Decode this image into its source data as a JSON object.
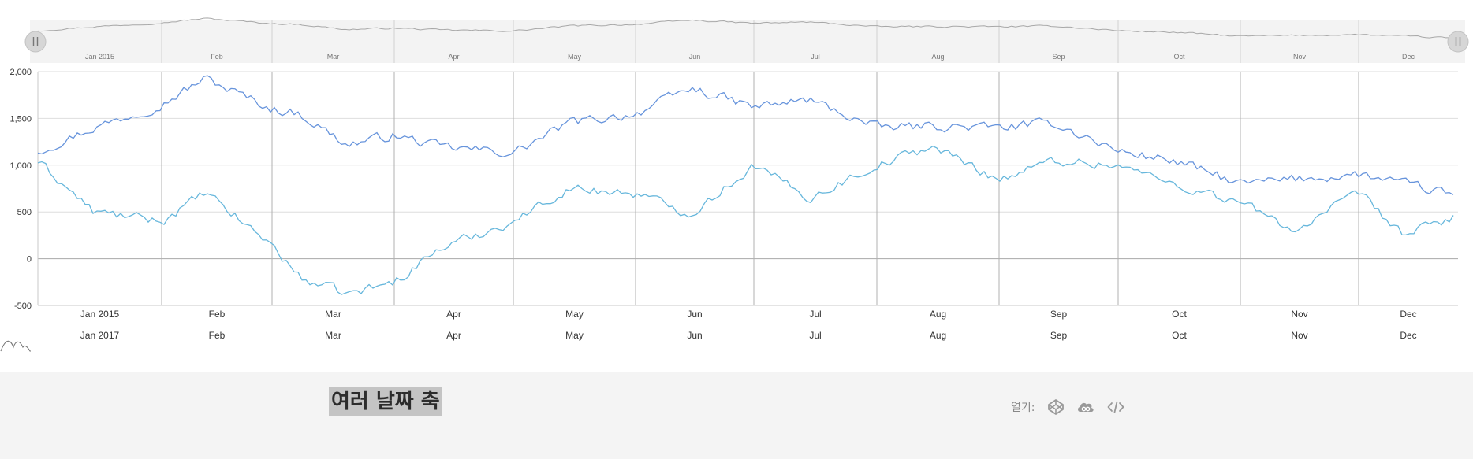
{
  "chart_data": {
    "type": "line",
    "ylim": [
      -500,
      2000
    ],
    "yticks": [
      "2,000",
      "1,500",
      "1,000",
      "500",
      "0",
      "-500"
    ],
    "ytick_values": [
      2000,
      1500,
      1000,
      500,
      0,
      -500
    ],
    "grid": true,
    "axis_top_labels": [
      "Jan 2015",
      "Feb",
      "Mar",
      "Apr",
      "May",
      "Jun",
      "Jul",
      "Aug",
      "Sep",
      "Oct",
      "Nov",
      "Dec"
    ],
    "axis_bottom_labels": [
      "Jan 2017",
      "Feb",
      "Mar",
      "Apr",
      "May",
      "Jun",
      "Jul",
      "Aug",
      "Sep",
      "Oct",
      "Nov",
      "Dec"
    ],
    "scrollbar_labels": [
      "Jan 2015",
      "Feb",
      "Mar",
      "Apr",
      "May",
      "Jun",
      "Jul",
      "Aug",
      "Sep",
      "Oct",
      "Nov",
      "Dec"
    ],
    "series": [
      {
        "color": "#6794dc",
        "x": [
          "2015-01-01",
          "2015-01-15",
          "2015-02-01",
          "2015-02-12",
          "2015-03-01",
          "2015-03-08",
          "2015-03-20",
          "2015-04-01",
          "2015-04-12",
          "2015-05-01",
          "2015-05-15",
          "2015-06-01",
          "2015-06-15",
          "2015-07-01",
          "2015-07-15",
          "2015-08-01",
          "2015-08-15",
          "2015-09-01",
          "2015-09-15",
          "2015-10-01",
          "2015-10-15",
          "2015-11-01",
          "2015-11-15",
          "2015-12-01",
          "2015-12-15",
          "2015-12-31"
        ],
        "values": [
          1150,
          1400,
          1650,
          1930,
          1600,
          1550,
          1220,
          1320,
          1200,
          1130,
          1450,
          1550,
          1820,
          1620,
          1700,
          1400,
          1420,
          1400,
          1450,
          1150,
          1050,
          800,
          850,
          900,
          800,
          680
        ]
      },
      {
        "color": "#67b7dc",
        "x": [
          "2015-01-01",
          "2015-01-15",
          "2015-02-01",
          "2015-02-12",
          "2015-03-01",
          "2015-03-08",
          "2015-03-20",
          "2015-04-01",
          "2015-04-12",
          "2015-05-01",
          "2015-05-15",
          "2015-06-01",
          "2015-06-15",
          "2015-07-01",
          "2015-07-15",
          "2015-08-01",
          "2015-08-15",
          "2015-09-01",
          "2015-09-15",
          "2015-10-01",
          "2015-10-15",
          "2015-11-01",
          "2015-11-15",
          "2015-12-01",
          "2015-12-15",
          "2015-12-31"
        ],
        "values": [
          1040,
          500,
          400,
          700,
          150,
          -200,
          -380,
          -250,
          100,
          400,
          750,
          700,
          480,
          1000,
          650,
          1000,
          1200,
          850,
          1050,
          1000,
          800,
          600,
          300,
          700,
          250,
          450
        ]
      }
    ]
  },
  "footer": {
    "title": "여러 날짜 축",
    "open_label": "열기:",
    "icons": [
      "codepen-icon",
      "jsfiddle-icon",
      "code-icon"
    ]
  },
  "colors": {
    "series1": "#6794dc",
    "series2": "#67b7dc",
    "scrollbar_bg": "#f3f3f3",
    "footer_bg": "#f4f4f4"
  }
}
